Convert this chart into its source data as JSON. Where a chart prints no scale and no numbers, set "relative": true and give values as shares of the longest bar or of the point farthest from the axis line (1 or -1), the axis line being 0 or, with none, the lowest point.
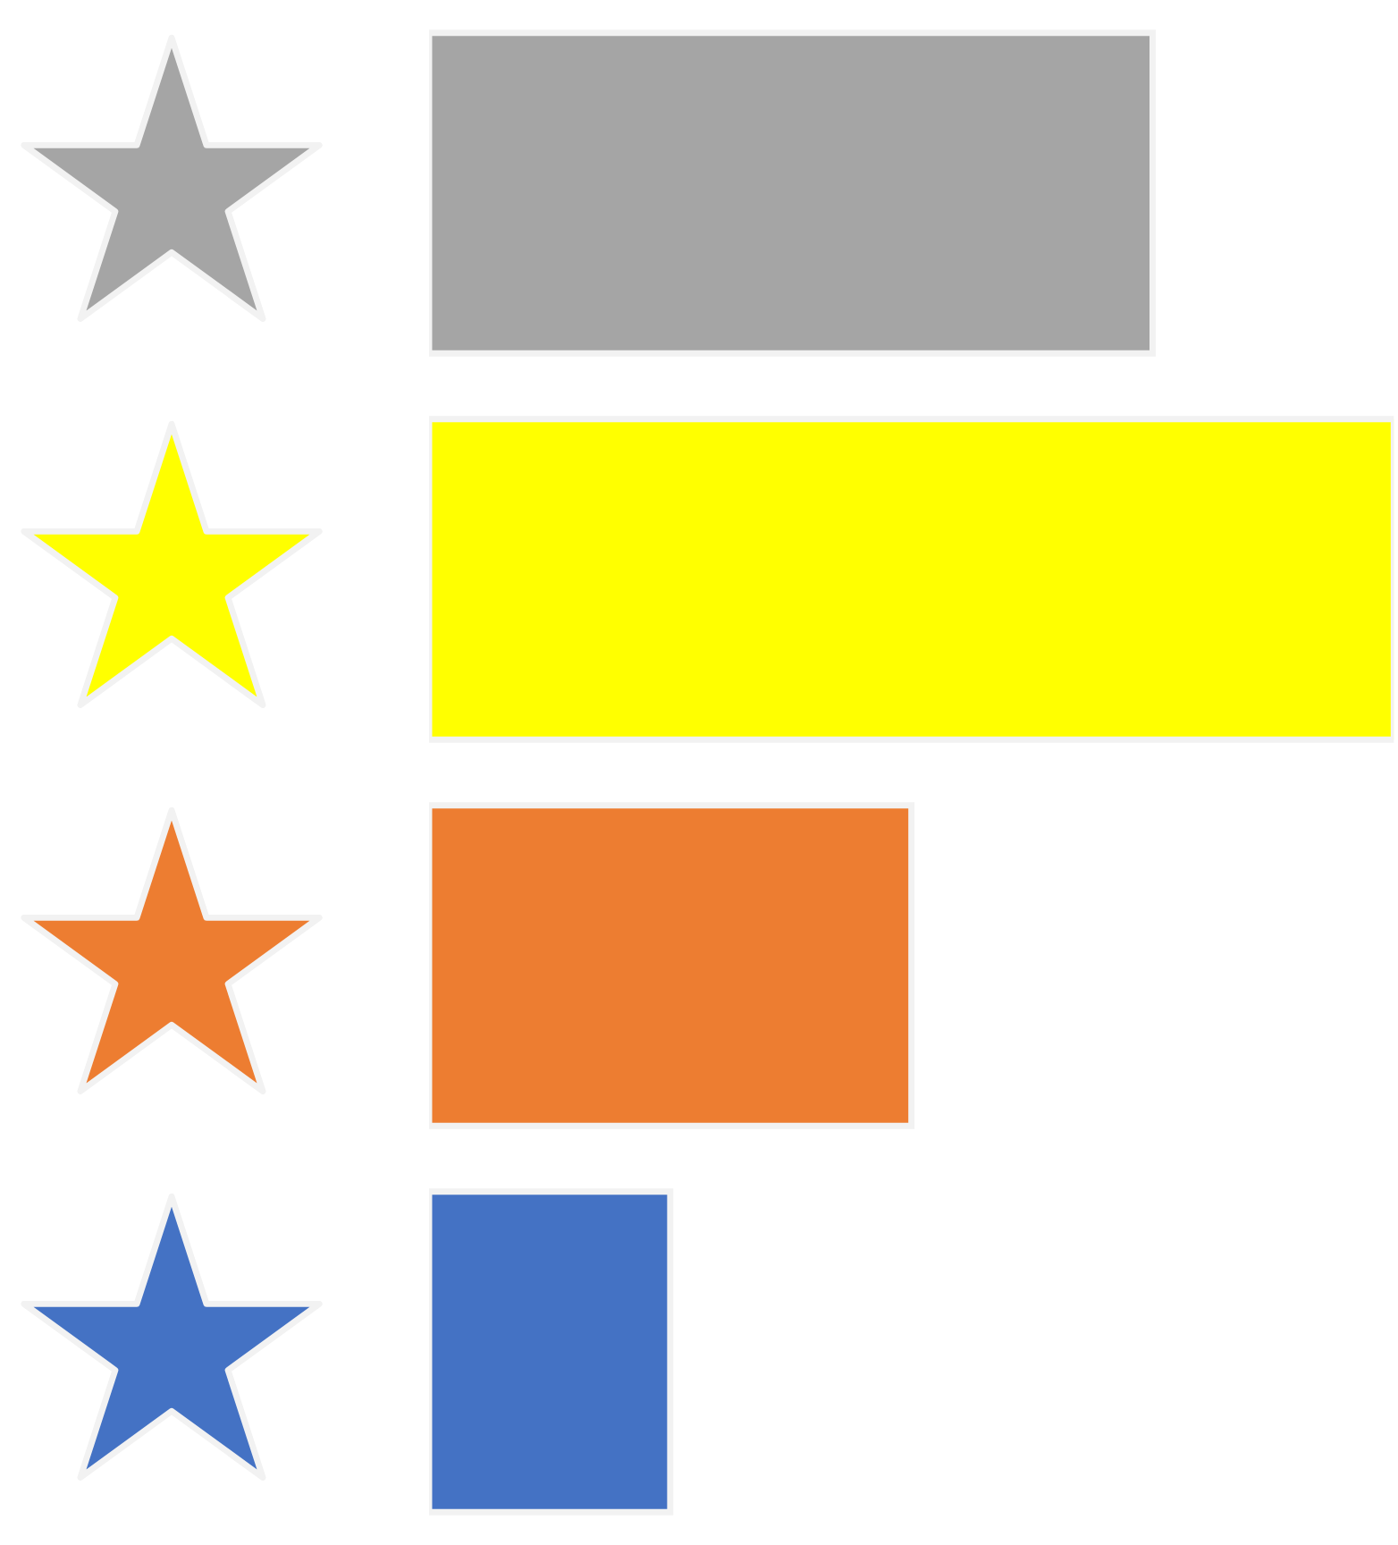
{
  "chart_data": {
    "type": "bar",
    "orientation": "horizontal",
    "relative": true,
    "categories": [
      null,
      null,
      null,
      null
    ],
    "values": [
      0.75,
      1,
      0.5,
      0.25
    ],
    "colors": [
      "#a5a5a5",
      "#ffff00",
      "#ed7d31",
      "#4472c4"
    ],
    "grid": false,
    "legend": false
  }
}
